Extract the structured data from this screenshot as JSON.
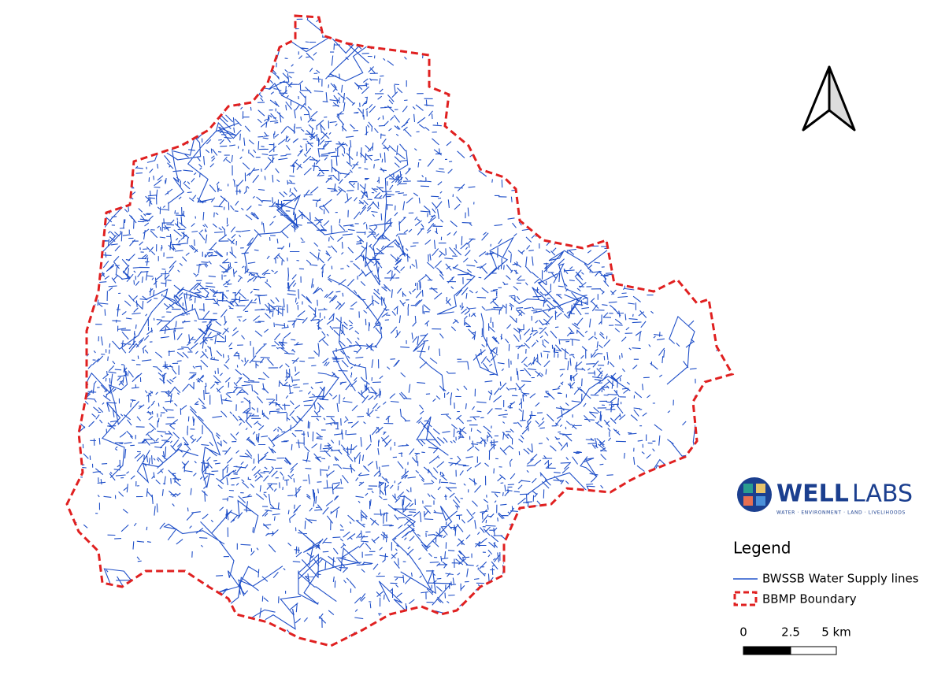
{
  "logo": {
    "name_bold": "WELL",
    "name_light": "LABS",
    "tagline": "WATER · ENVIRONMENT · LAND · LIVELIHOODS"
  },
  "legend": {
    "title": "Legend",
    "items": [
      "BWSSB Water Supply lines",
      "BBMP Boundary"
    ]
  },
  "scale_bar": {
    "labels": [
      "0",
      "2.5",
      "5 km"
    ]
  }
}
